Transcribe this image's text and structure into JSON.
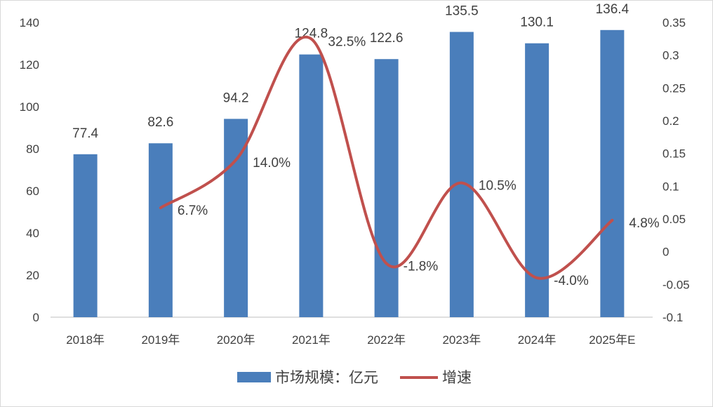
{
  "chart_data": {
    "type": "bar",
    "title": "",
    "categories": [
      "2018年",
      "2019年",
      "2020年",
      "2021年",
      "2022年",
      "2023年",
      "2024年",
      "2025年E"
    ],
    "series": [
      {
        "name": "市场规模：亿元",
        "type": "bar",
        "axis": "left",
        "color": "#4a7ebb",
        "values": [
          77.4,
          82.6,
          94.2,
          124.8,
          122.6,
          135.5,
          130.1,
          136.4
        ],
        "labels": [
          "77.4",
          "82.6",
          "94.2",
          "124.8",
          "122.6",
          "135.5",
          "130.1",
          "136.4"
        ]
      },
      {
        "name": "增速",
        "type": "line",
        "axis": "right",
        "color": "#c0504d",
        "smooth": true,
        "values": [
          null,
          0.067,
          0.14,
          0.325,
          -0.018,
          0.105,
          -0.04,
          0.048
        ],
        "labels": [
          "",
          "6.7%",
          "14.0%",
          "32.5%",
          "-1.8%",
          "10.5%",
          "-4.0%",
          "4.8%"
        ]
      }
    ],
    "ylim_left": [
      0,
      140
    ],
    "yticks_left": [
      "0",
      "20",
      "40",
      "60",
      "80",
      "100",
      "120",
      "140"
    ],
    "ylim_right": [
      -0.1,
      0.35
    ],
    "yticks_right": [
      "-0.1",
      "-0.05",
      "0",
      "0.05",
      "0.1",
      "0.15",
      "0.2",
      "0.25",
      "0.3",
      "0.35"
    ],
    "grid": false,
    "legend": "bottom"
  }
}
